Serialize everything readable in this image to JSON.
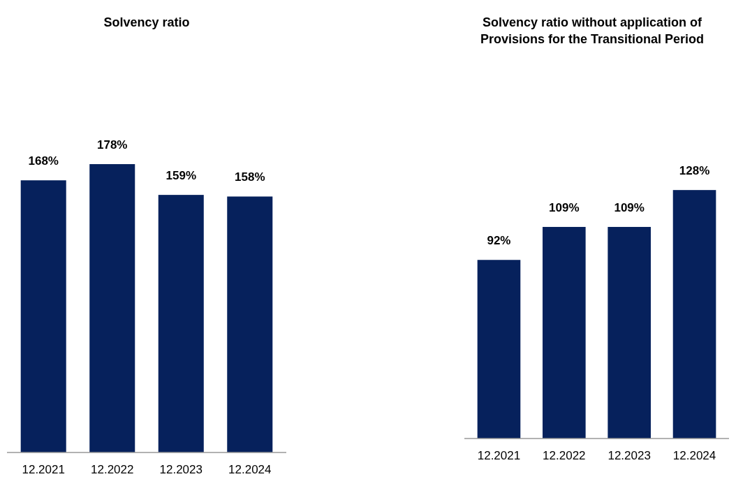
{
  "chart_data": [
    {
      "type": "bar",
      "title": "Solvency ratio",
      "categories": [
        "12.2021",
        "12.2022",
        "12.2023",
        "12.2024"
      ],
      "values": [
        168,
        178,
        159,
        158
      ],
      "color": "#06215c",
      "value_labels": [
        "168%",
        "178%",
        "159%",
        "158%"
      ]
    },
    {
      "type": "bar",
      "title": "Solvency ratio without application of Provisions for the Transitional Period",
      "categories": [
        "12.2021",
        "12.2022",
        "12.2023",
        "12.2024"
      ],
      "values": [
        92,
        109,
        109,
        128
      ],
      "color": "#06215c",
      "value_labels": [
        "92%",
        "109%",
        "109%",
        "128%"
      ]
    }
  ]
}
